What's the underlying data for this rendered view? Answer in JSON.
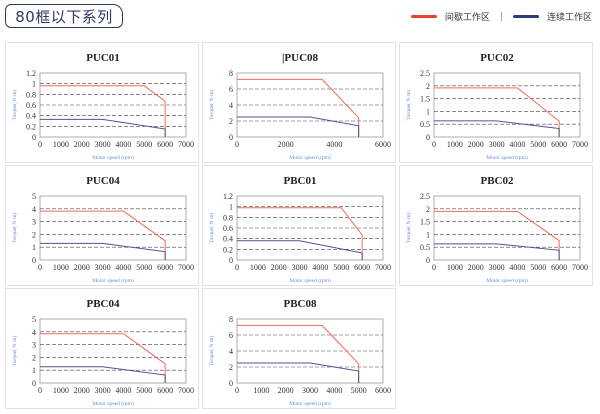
{
  "header": {
    "title": "80框以下系列"
  },
  "legend": [
    {
      "label": "间歇工作区",
      "color": "#e8432e"
    },
    {
      "label": "连续工作区",
      "color": "#2b3a7a"
    }
  ],
  "legend_separator": "|",
  "colors": {
    "intermittent": "#f06a5a",
    "continuous": "#4a5590",
    "axis_label": "#6a8fd0"
  },
  "chart_data": [
    {
      "type": "line",
      "title": "PUC01",
      "xlabel": "Motor speed (rpm)",
      "ylabel": "Torque( N·m)",
      "xlim": [
        0,
        7000
      ],
      "xticks": [
        0,
        1000,
        2000,
        3000,
        4000,
        5000,
        6000,
        7000
      ],
      "ylim": [
        0,
        1.2
      ],
      "yticks": [
        0,
        0.2,
        0.4,
        0.6,
        0.8,
        1,
        1.2
      ],
      "grid": true,
      "series": [
        {
          "name": "间歇工作区",
          "points": [
            [
              0,
              0.96
            ],
            [
              5000,
              0.96
            ],
            [
              6000,
              0.67
            ],
            [
              6000,
              0
            ]
          ]
        },
        {
          "name": "连续工作区",
          "points": [
            [
              0,
              0.33
            ],
            [
              3000,
              0.33
            ],
            [
              6000,
              0.15
            ],
            [
              6000,
              0
            ]
          ]
        }
      ]
    },
    {
      "type": "line",
      "title": "|PUC08",
      "xlabel": "Motor speed (rpm)",
      "ylabel": "Torque( N·m)",
      "xlim": [
        0,
        6000
      ],
      "xticks": [
        0,
        2000,
        4000,
        6000
      ],
      "ylim": [
        0,
        8
      ],
      "yticks": [
        0,
        2,
        4,
        6,
        8
      ],
      "grid": true,
      "series": [
        {
          "name": "间歇工作区",
          "points": [
            [
              0,
              7.2
            ],
            [
              3500,
              7.2
            ],
            [
              5000,
              2.4
            ],
            [
              5000,
              0
            ]
          ]
        },
        {
          "name": "连续工作区",
          "points": [
            [
              0,
              2.5
            ],
            [
              3000,
              2.5
            ],
            [
              5000,
              1.4
            ],
            [
              5000,
              0
            ]
          ]
        }
      ]
    },
    {
      "type": "line",
      "title": "PUC02",
      "xlabel": "Motor speed (rpm)",
      "ylabel": "Torque( N·m)",
      "xlim": [
        0,
        7000
      ],
      "xticks": [
        0,
        1000,
        2000,
        3000,
        4000,
        5000,
        6000,
        7000
      ],
      "ylim": [
        0,
        2.5
      ],
      "yticks": [
        0,
        0.5,
        1,
        1.5,
        2,
        2.5
      ],
      "grid": true,
      "series": [
        {
          "name": "间歇工作区",
          "points": [
            [
              0,
              1.92
            ],
            [
              4000,
              1.92
            ],
            [
              6000,
              0.62
            ],
            [
              6000,
              0
            ]
          ]
        },
        {
          "name": "连续工作区",
          "points": [
            [
              0,
              0.63
            ],
            [
              3000,
              0.63
            ],
            [
              6000,
              0.33
            ],
            [
              6000,
              0
            ]
          ]
        }
      ]
    },
    {
      "type": "line",
      "title": "PUC04",
      "xlabel": "Motor speed (rpm)",
      "ylabel": "Torque( N·m)",
      "xlim": [
        0,
        7000
      ],
      "xticks": [
        0,
        1000,
        2000,
        3000,
        4000,
        5000,
        6000,
        7000
      ],
      "ylim": [
        0,
        5
      ],
      "yticks": [
        0,
        1,
        2,
        3,
        4,
        5
      ],
      "grid": true,
      "series": [
        {
          "name": "间歇工作区",
          "points": [
            [
              0,
              3.82
            ],
            [
              4000,
              3.82
            ],
            [
              6000,
              1.5
            ],
            [
              6000,
              0
            ]
          ]
        },
        {
          "name": "连续工作区",
          "points": [
            [
              0,
              1.3
            ],
            [
              3000,
              1.3
            ],
            [
              6000,
              0.65
            ],
            [
              6000,
              0
            ]
          ]
        }
      ]
    },
    {
      "type": "line",
      "title": "PBC01",
      "xlabel": "Motor speed (rpm)",
      "ylabel": "Torque( N·m)",
      "xlim": [
        0,
        7000
      ],
      "xticks": [
        0,
        1000,
        2000,
        3000,
        4000,
        5000,
        6000,
        7000
      ],
      "ylim": [
        0,
        1.2
      ],
      "yticks": [
        0,
        0.2,
        0.4,
        0.6,
        0.8,
        1,
        1.2
      ],
      "grid": true,
      "series": [
        {
          "name": "间歇工作区",
          "points": [
            [
              0,
              0.98
            ],
            [
              5000,
              0.98
            ],
            [
              6000,
              0.47
            ],
            [
              6000,
              0
            ]
          ]
        },
        {
          "name": "连续工作区",
          "points": [
            [
              0,
              0.36
            ],
            [
              3000,
              0.36
            ],
            [
              6000,
              0.13
            ],
            [
              6000,
              0
            ]
          ]
        }
      ]
    },
    {
      "type": "line",
      "title": "PBC02",
      "xlabel": "Motor speed (rpm)",
      "ylabel": "Torque( N·m)",
      "xlim": [
        0,
        7000
      ],
      "xticks": [
        0,
        1000,
        2000,
        3000,
        4000,
        5000,
        6000,
        7000
      ],
      "ylim": [
        0,
        2.5
      ],
      "yticks": [
        0,
        0.5,
        1,
        1.5,
        2,
        2.5
      ],
      "grid": true,
      "series": [
        {
          "name": "间歇工作区",
          "points": [
            [
              0,
              1.9
            ],
            [
              4000,
              1.9
            ],
            [
              6000,
              0.76
            ],
            [
              6000,
              0
            ]
          ]
        },
        {
          "name": "连续工作区",
          "points": [
            [
              0,
              0.63
            ],
            [
              3000,
              0.63
            ],
            [
              6000,
              0.38
            ],
            [
              6000,
              0
            ]
          ]
        }
      ]
    },
    {
      "type": "line",
      "title": "PBC04",
      "xlabel": "Motor speed (rpm)",
      "ylabel": "Torque( N·m)",
      "xlim": [
        0,
        7000
      ],
      "xticks": [
        0,
        1000,
        2000,
        3000,
        4000,
        5000,
        6000,
        7000
      ],
      "ylim": [
        0,
        5
      ],
      "yticks": [
        0,
        1,
        2,
        3,
        4,
        5
      ],
      "grid": true,
      "series": [
        {
          "name": "间歇工作区",
          "points": [
            [
              0,
              3.85
            ],
            [
              4000,
              3.85
            ],
            [
              6000,
              1.5
            ],
            [
              6000,
              0
            ]
          ]
        },
        {
          "name": "连续工作区",
          "points": [
            [
              0,
              1.27
            ],
            [
              3000,
              1.27
            ],
            [
              6000,
              0.62
            ],
            [
              6000,
              0
            ]
          ]
        }
      ]
    },
    {
      "type": "line",
      "title": "PBC08",
      "xlabel": "Motor speed (rpm)",
      "ylabel": "Torque( N·m)",
      "xlim": [
        0,
        6000
      ],
      "xticks": [
        0,
        1000,
        2000,
        3000,
        4000,
        5000,
        6000
      ],
      "ylim": [
        0,
        8
      ],
      "yticks": [
        0,
        2,
        4,
        6,
        8
      ],
      "grid": true,
      "series": [
        {
          "name": "间歇工作区",
          "points": [
            [
              0,
              7.2
            ],
            [
              3500,
              7.2
            ],
            [
              5000,
              2.4
            ],
            [
              5000,
              0
            ]
          ]
        },
        {
          "name": "连续工作区",
          "points": [
            [
              0,
              2.5
            ],
            [
              3000,
              2.5
            ],
            [
              5000,
              1.5
            ],
            [
              5000,
              0
            ]
          ]
        }
      ]
    }
  ]
}
